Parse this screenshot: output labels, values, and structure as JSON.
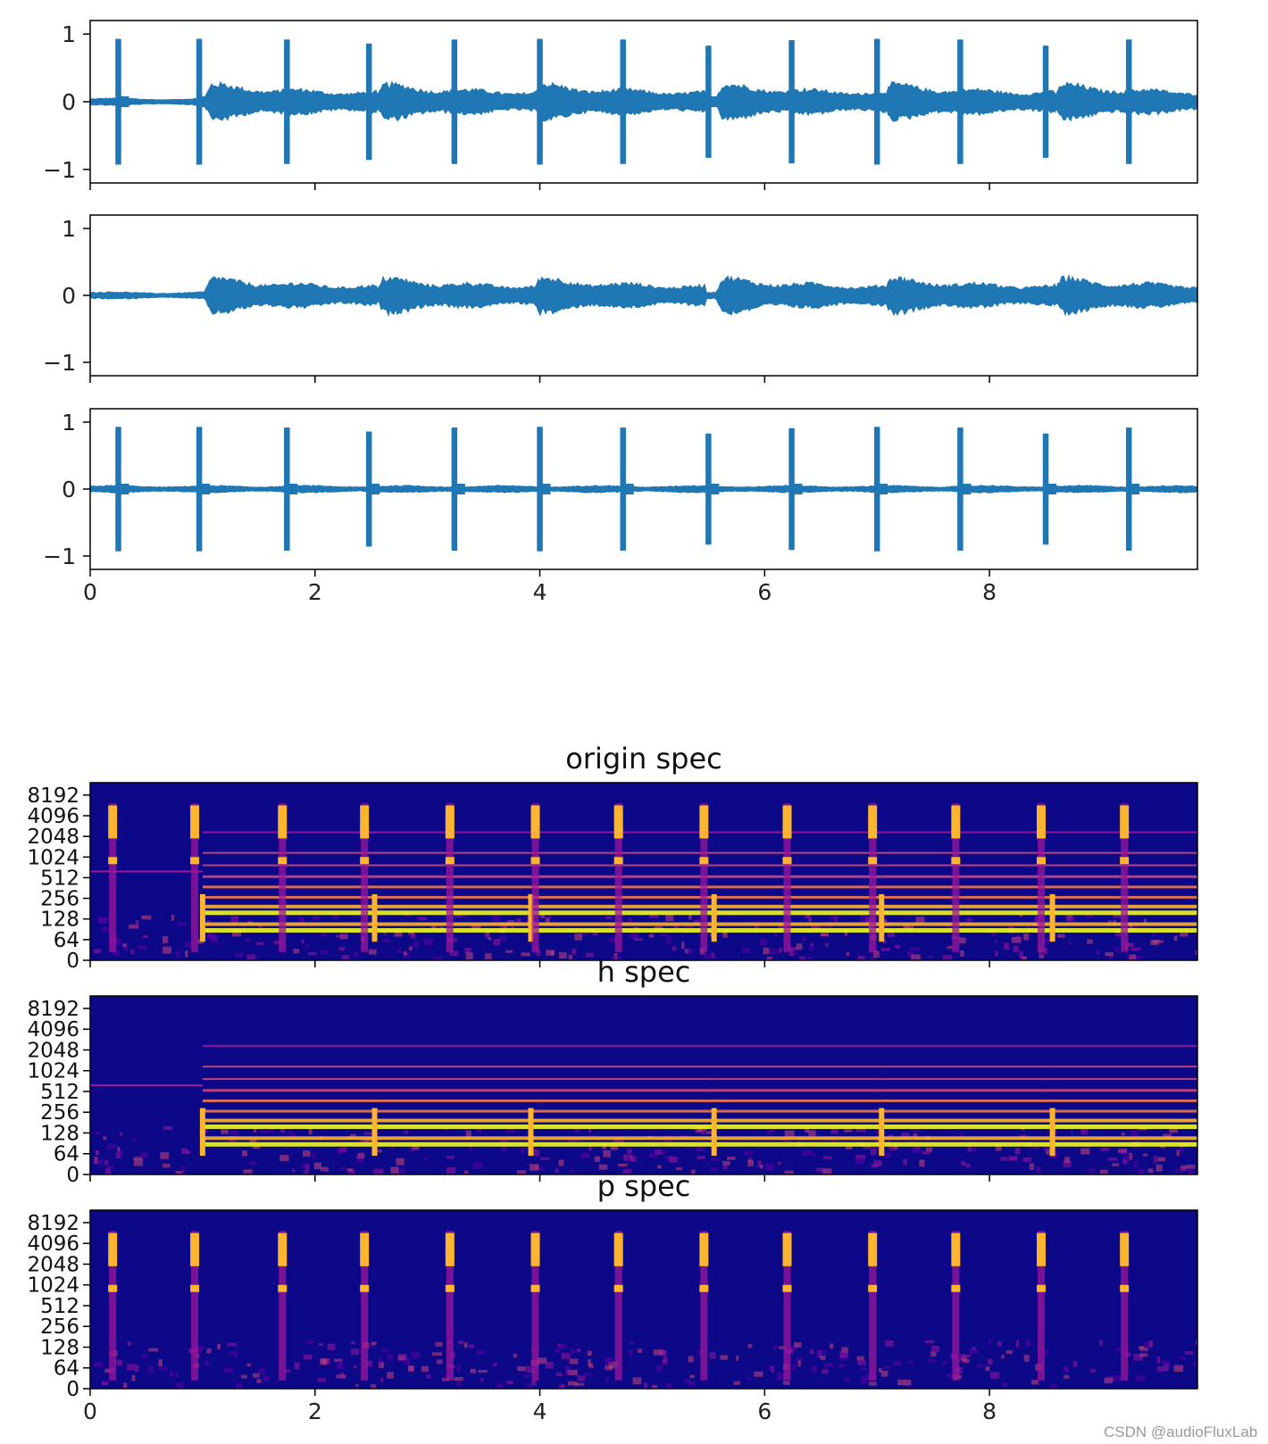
{
  "colors": {
    "wave": "#1f77b4",
    "spec_background": "#0d0887",
    "spec_scale": [
      "#0d0887",
      "#5c01a6",
      "#9c179e",
      "#cc4778",
      "#ed7953",
      "#fdb42f",
      "#f0f921"
    ]
  },
  "watermark": "CSDN @audioFluxLab",
  "chart_data": [
    {
      "type": "line",
      "id": "waveform-origin",
      "title": "",
      "xlim": [
        0,
        9.85
      ],
      "ylim": [
        -1.2,
        1.2
      ],
      "xticks": [
        "0",
        "2",
        "4",
        "6",
        "8"
      ],
      "xtick_values": [
        0,
        2,
        4,
        6,
        8
      ],
      "xtick_labels_visible": false,
      "yticks": [
        "1",
        "0",
        "−1"
      ],
      "ytick_values": [
        1,
        0,
        -1
      ],
      "onsets": [
        0.25,
        0.97,
        1.75,
        2.48,
        3.24,
        4.0,
        4.74,
        5.5,
        6.24,
        7.0,
        7.74,
        8.5,
        9.24
      ],
      "onset_peaks": [
        0.92,
        0.92,
        0.91,
        0.85,
        0.91,
        0.92,
        0.91,
        0.82,
        0.9,
        0.92,
        0.91,
        0.82,
        0.91
      ],
      "harmonic_segments": [
        1.0,
        2.53,
        3.92,
        5.55,
        7.04,
        8.56
      ],
      "harmonic_peak": 0.27
    },
    {
      "type": "line",
      "id": "waveform-harmonic",
      "title": "",
      "xlim": [
        0,
        9.85
      ],
      "ylim": [
        -1.2,
        1.2
      ],
      "xticks": [
        "0",
        "2",
        "4",
        "6",
        "8"
      ],
      "xtick_values": [
        0,
        2,
        4,
        6,
        8
      ],
      "xtick_labels_visible": false,
      "yticks": [
        "1",
        "0",
        "−1"
      ],
      "ytick_values": [
        1,
        0,
        -1
      ],
      "onsets": [],
      "onset_peaks": [],
      "harmonic_segments": [
        1.0,
        2.53,
        3.92,
        5.55,
        7.04,
        8.56
      ],
      "harmonic_peak": 0.27
    },
    {
      "type": "line",
      "id": "waveform-percussive",
      "title": "",
      "xlim": [
        0,
        9.85
      ],
      "ylim": [
        -1.2,
        1.2
      ],
      "xticks": [
        "0",
        "2",
        "4",
        "6",
        "8"
      ],
      "xtick_values": [
        0,
        2,
        4,
        6,
        8
      ],
      "xtick_labels_visible": true,
      "yticks": [
        "1",
        "0",
        "−1"
      ],
      "ytick_values": [
        1,
        0,
        -1
      ],
      "onsets": [
        0.25,
        0.97,
        1.75,
        2.48,
        3.24,
        4.0,
        4.74,
        5.5,
        6.24,
        7.0,
        7.74,
        8.5,
        9.24
      ],
      "onset_peaks": [
        0.92,
        0.92,
        0.91,
        0.85,
        0.91,
        0.92,
        0.91,
        0.82,
        0.9,
        0.92,
        0.91,
        0.82,
        0.91
      ],
      "harmonic_segments": [],
      "harmonic_peak": 0
    },
    {
      "type": "heatmap",
      "id": "spec-origin",
      "title": "origin spec",
      "xlim": [
        0,
        9.85
      ],
      "xticks": [
        "0",
        "2",
        "4",
        "6",
        "8"
      ],
      "xtick_values": [
        0,
        2,
        4,
        6,
        8
      ],
      "xtick_labels_visible": false,
      "yscale": "log2 frequency (Hz)",
      "yticks": [
        "8192",
        "4096",
        "2048",
        "1024",
        "512",
        "256",
        "128",
        "64",
        "0"
      ],
      "onsets": [
        0.2,
        0.93,
        1.71,
        2.44,
        3.2,
        3.96,
        4.7,
        5.46,
        6.2,
        6.96,
        7.7,
        8.46,
        9.2
      ],
      "harmonic_segments": [
        1.0,
        2.53,
        3.92,
        5.55,
        7.04,
        8.56
      ],
      "show_percussive": true,
      "show_harmonic": true
    },
    {
      "type": "heatmap",
      "id": "spec-h",
      "title": "h spec",
      "xlim": [
        0,
        9.85
      ],
      "xticks": [
        "0",
        "2",
        "4",
        "6",
        "8"
      ],
      "xtick_values": [
        0,
        2,
        4,
        6,
        8
      ],
      "xtick_labels_visible": false,
      "yscale": "log2 frequency (Hz)",
      "yticks": [
        "8192",
        "4096",
        "2048",
        "1024",
        "512",
        "256",
        "128",
        "64",
        "0"
      ],
      "onsets": [],
      "harmonic_segments": [
        1.0,
        2.53,
        3.92,
        5.55,
        7.04,
        8.56
      ],
      "show_percussive": false,
      "show_harmonic": true
    },
    {
      "type": "heatmap",
      "id": "spec-p",
      "title": "p spec",
      "xlim": [
        0,
        9.85
      ],
      "xticks": [
        "0",
        "2",
        "4",
        "6",
        "8"
      ],
      "xtick_values": [
        0,
        2,
        4,
        6,
        8
      ],
      "xtick_labels_visible": true,
      "yscale": "log2 frequency (Hz)",
      "yticks": [
        "8192",
        "4096",
        "2048",
        "1024",
        "512",
        "256",
        "128",
        "64",
        "0"
      ],
      "onsets": [
        0.2,
        0.93,
        1.71,
        2.44,
        3.2,
        3.96,
        4.7,
        5.46,
        6.2,
        6.96,
        7.7,
        8.46,
        9.2
      ],
      "harmonic_segments": [],
      "show_percussive": true,
      "show_harmonic": false
    }
  ]
}
